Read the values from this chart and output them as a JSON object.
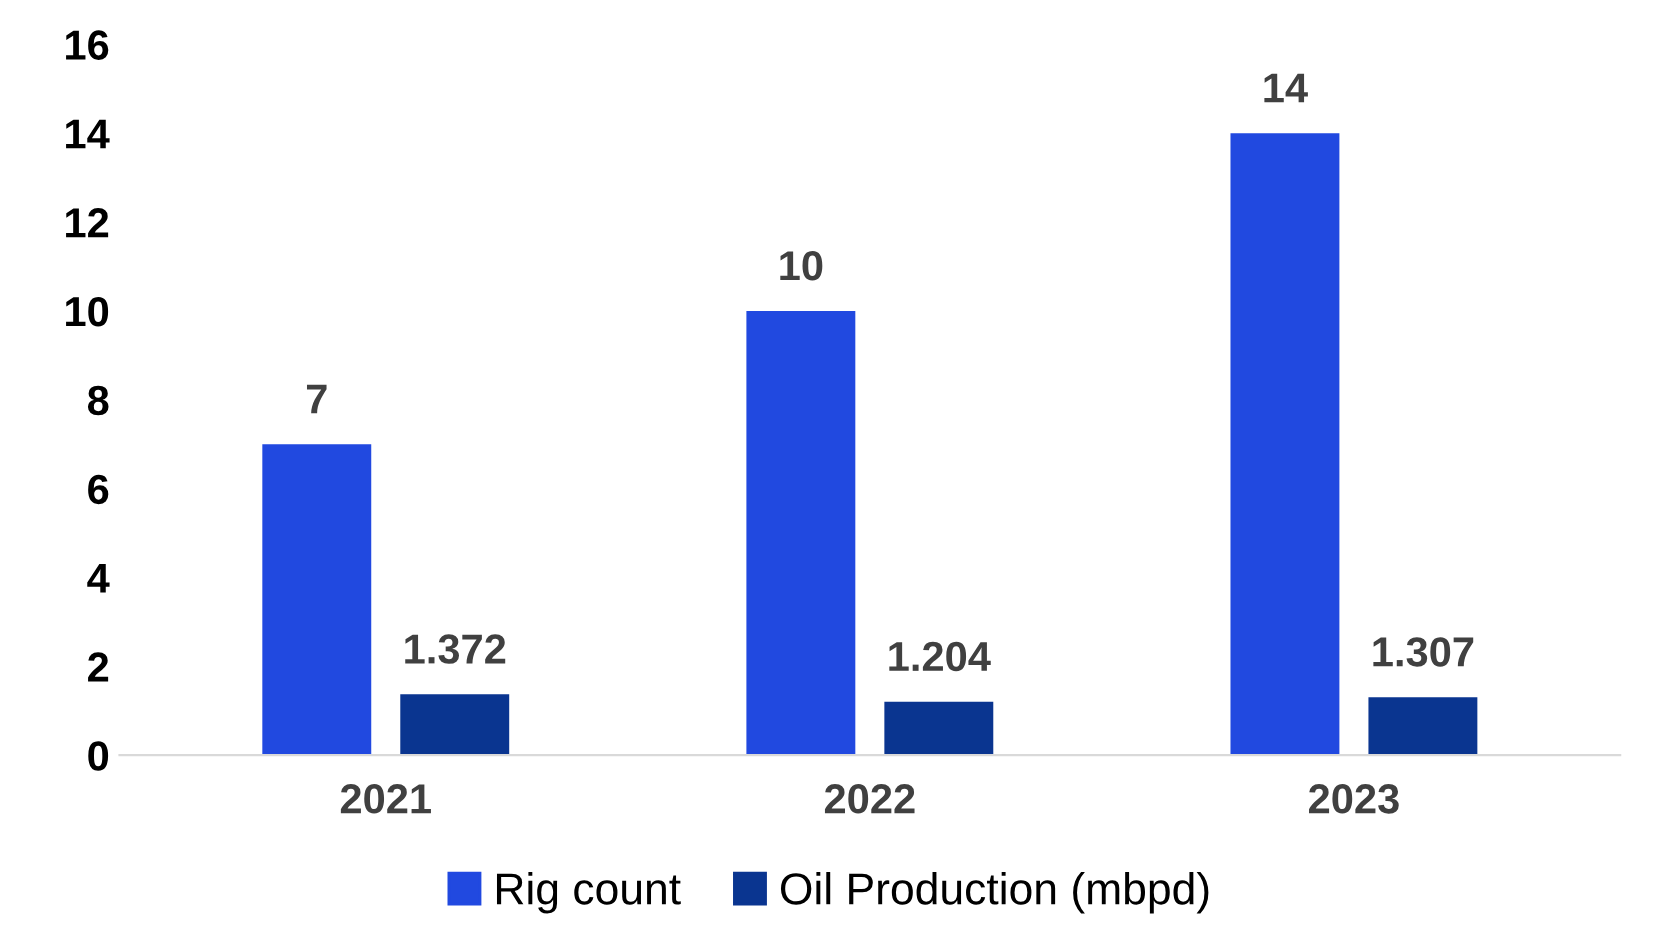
{
  "chart_data": {
    "type": "bar",
    "categories": [
      "2021",
      "2022",
      "2023"
    ],
    "series": [
      {
        "name": "Rig count",
        "color": "#2149e0",
        "values": [
          7,
          10,
          14
        ]
      },
      {
        "name": "Oil Production (mbpd)",
        "color": "#0a3590",
        "values": [
          1.372,
          1.204,
          1.307
        ]
      }
    ],
    "ylim": [
      0,
      16
    ],
    "yticks": [
      0,
      2,
      4,
      6,
      8,
      10,
      12,
      14,
      16
    ],
    "data_labels": true,
    "grid": false,
    "legend": "bottom"
  }
}
